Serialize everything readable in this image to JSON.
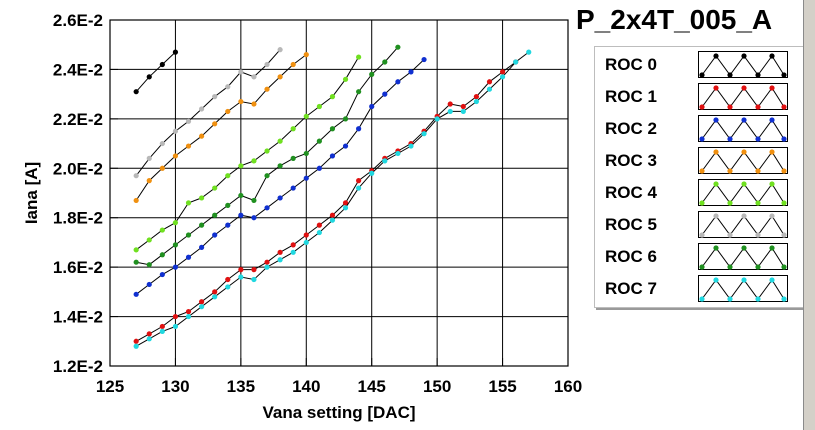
{
  "chart_data": {
    "type": "line",
    "title": "P_2x4T_005_A",
    "xlabel": "Vana setting [DAC]",
    "ylabel": "Iana [A]",
    "xlim": [
      125,
      160
    ],
    "ylim": [
      0.012,
      0.026
    ],
    "x_ticks": [
      "125",
      "130",
      "135",
      "140",
      "145",
      "150",
      "155",
      "160"
    ],
    "y_ticks": [
      "1.2E-2",
      "1.4E-2",
      "1.6E-2",
      "1.8E-2",
      "2.0E-2",
      "2.2E-2",
      "2.4E-2",
      "2.6E-2"
    ],
    "grid": true,
    "legend_position": "right",
    "series": [
      {
        "name": "ROC 0",
        "color": "#000000",
        "x": [
          127,
          128,
          129,
          130
        ],
        "y": [
          0.0231,
          0.0237,
          0.0242,
          0.0247
        ]
      },
      {
        "name": "ROC 1",
        "color": "#e01010",
        "x": [
          127,
          128,
          129,
          130,
          131,
          132,
          133,
          134,
          135,
          136,
          137,
          138,
          139,
          140,
          141,
          142,
          143,
          144,
          145,
          146,
          147,
          148,
          149,
          150,
          151,
          152,
          153,
          154,
          155,
          156
        ],
        "y": [
          0.013,
          0.0133,
          0.0136,
          0.014,
          0.0142,
          0.0146,
          0.015,
          0.0155,
          0.0159,
          0.0159,
          0.0162,
          0.0166,
          0.0169,
          0.0173,
          0.0177,
          0.0181,
          0.0186,
          0.0195,
          0.0199,
          0.0204,
          0.0207,
          0.021,
          0.0215,
          0.0221,
          0.0226,
          0.0225,
          0.0229,
          0.0235,
          0.0239,
          0.0243
        ]
      },
      {
        "name": "ROC 2",
        "color": "#1030d0",
        "x": [
          127,
          128,
          129,
          130,
          131,
          132,
          133,
          134,
          135,
          136,
          137,
          138,
          139,
          140,
          141,
          142,
          143,
          144,
          145,
          146,
          147,
          148,
          149
        ],
        "y": [
          0.0149,
          0.0153,
          0.0157,
          0.016,
          0.0164,
          0.0168,
          0.0173,
          0.0177,
          0.0181,
          0.018,
          0.0184,
          0.0188,
          0.0192,
          0.0196,
          0.02,
          0.0205,
          0.0209,
          0.0216,
          0.0225,
          0.023,
          0.0235,
          0.0239,
          0.0244
        ]
      },
      {
        "name": "ROC 3",
        "color": "#f09010",
        "x": [
          127,
          128,
          129,
          130,
          131,
          132,
          133,
          134,
          135,
          136,
          137,
          138,
          139,
          140
        ],
        "y": [
          0.0187,
          0.0195,
          0.02,
          0.0205,
          0.0209,
          0.0213,
          0.0218,
          0.0223,
          0.0227,
          0.0226,
          0.0232,
          0.0237,
          0.0242,
          0.0246
        ]
      },
      {
        "name": "ROC 4",
        "color": "#70e020",
        "x": [
          127,
          128,
          129,
          130,
          131,
          132,
          133,
          134,
          135,
          136,
          137,
          138,
          139,
          140,
          141,
          142,
          143,
          144
        ],
        "y": [
          0.0167,
          0.0171,
          0.0175,
          0.0178,
          0.0186,
          0.0188,
          0.0192,
          0.0197,
          0.0201,
          0.0203,
          0.0207,
          0.0211,
          0.0216,
          0.0221,
          0.0225,
          0.0229,
          0.0236,
          0.0245
        ]
      },
      {
        "name": "ROC 5",
        "color": "#b8b8b8",
        "x": [
          127,
          128,
          129,
          130,
          131,
          132,
          133,
          134,
          135,
          136,
          137,
          138
        ],
        "y": [
          0.0197,
          0.0204,
          0.021,
          0.0215,
          0.0219,
          0.0224,
          0.0229,
          0.0233,
          0.0239,
          0.0237,
          0.0242,
          0.0248
        ]
      },
      {
        "name": "ROC 6",
        "color": "#209020",
        "x": [
          127,
          128,
          129,
          130,
          131,
          132,
          133,
          134,
          135,
          136,
          137,
          138,
          139,
          140,
          141,
          142,
          143,
          144,
          145,
          146,
          147
        ],
        "y": [
          0.0162,
          0.0161,
          0.0165,
          0.0169,
          0.0173,
          0.0177,
          0.0181,
          0.0185,
          0.0189,
          0.0187,
          0.0197,
          0.0201,
          0.0204,
          0.0206,
          0.0211,
          0.0216,
          0.022,
          0.0231,
          0.0238,
          0.0243,
          0.0249
        ]
      },
      {
        "name": "ROC 7",
        "color": "#20d8e0",
        "x": [
          127,
          128,
          129,
          130,
          131,
          132,
          133,
          134,
          135,
          136,
          137,
          138,
          139,
          140,
          141,
          142,
          143,
          144,
          145,
          146,
          147,
          148,
          149,
          150,
          151,
          152,
          153,
          154,
          155,
          156,
          157
        ],
        "y": [
          0.0128,
          0.0131,
          0.0134,
          0.0136,
          0.014,
          0.0144,
          0.0148,
          0.0152,
          0.0156,
          0.0155,
          0.016,
          0.0163,
          0.0166,
          0.017,
          0.0174,
          0.0179,
          0.0184,
          0.0192,
          0.0198,
          0.0203,
          0.0206,
          0.0209,
          0.0214,
          0.022,
          0.0223,
          0.0223,
          0.0227,
          0.0232,
          0.0237,
          0.0243,
          0.0247
        ]
      }
    ]
  }
}
